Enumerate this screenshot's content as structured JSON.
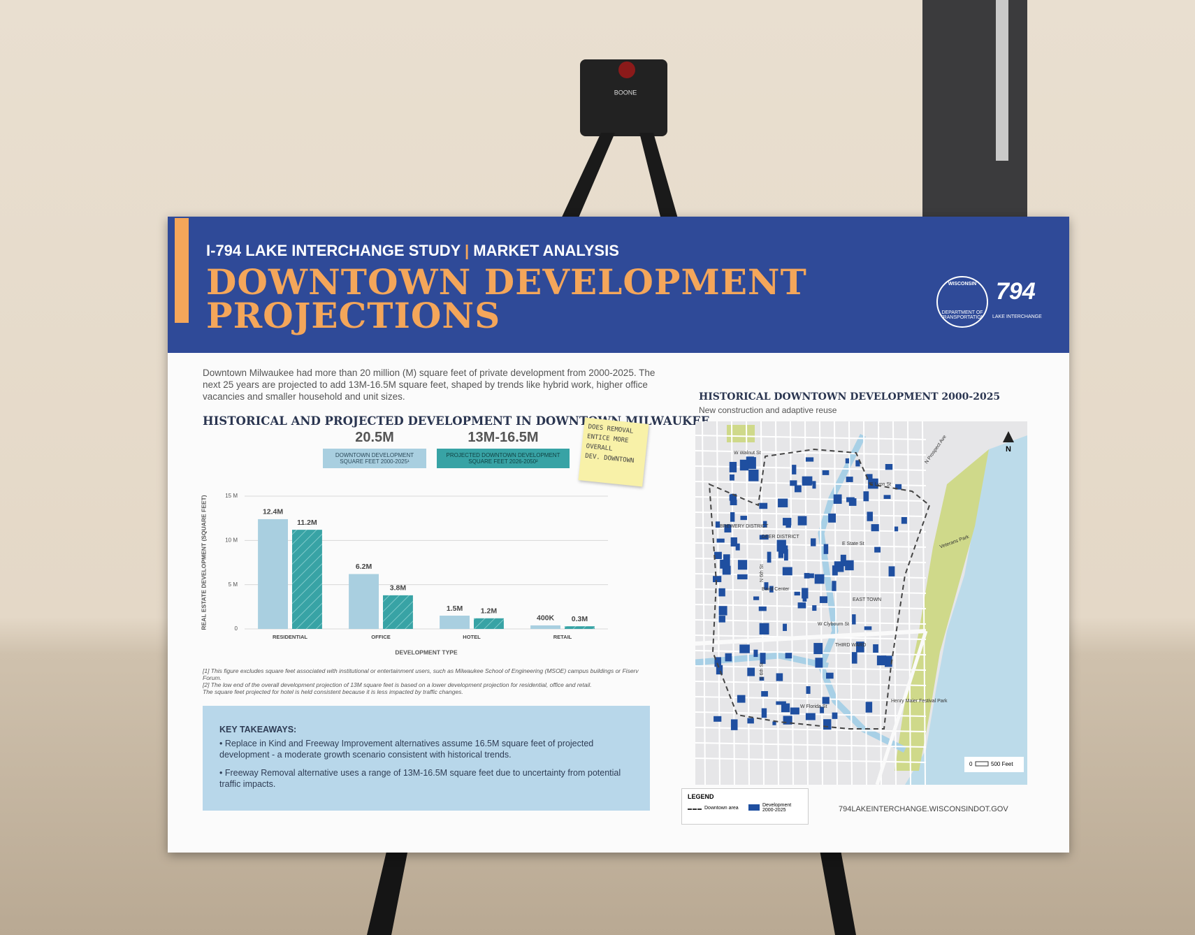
{
  "header": {
    "study": "I-794 LAKE INTERCHANGE STUDY",
    "section": "MARKET ANALYSIS",
    "title_line1": "DOWNTOWN DEVELOPMENT",
    "title_line2": "PROJECTIONS"
  },
  "logos": {
    "agency_top": "WISCONSIN",
    "agency_bottom": "DEPARTMENT OF TRANSPORTATION",
    "route": "794",
    "route_caption": "LAKE INTERCHANGE"
  },
  "intro": "Downtown Milwaukee had more than 20 million (M) square feet of private development from 2000-2025. The next 25 years are projected to add 13M-16.5M square feet, shaped by trends like hybrid work, higher office vacancies and smaller household and unit sizes.",
  "chart_data": {
    "type": "bar",
    "title": "HISTORICAL AND PROJECTED DEVELOPMENT IN DOWNTOWN MILWAUKEE",
    "xlabel": "DEVELOPMENT TYPE",
    "ylabel": "REAL ESTATE DEVELOPMENT (SQUARE FEET)",
    "categories": [
      "RESIDENTIAL",
      "OFFICE",
      "HOTEL",
      "RETAIL"
    ],
    "series": [
      {
        "name": "DOWNTOWN DEVELOPMENT SQUARE FEET 2000-2025¹",
        "summary": "20.5M",
        "color": "#a9cfe0",
        "pattern": "solid",
        "values": [
          12.4,
          6.2,
          1.5,
          0.4
        ],
        "value_labels": [
          "12.4M",
          "6.2M",
          "1.5M",
          "400K"
        ]
      },
      {
        "name": "PROJECTED DOWNTOWN DEVELOPMENT SQUARE FEET 2026-2050²",
        "summary": "13M-16.5M",
        "color": "#38a3a5",
        "pattern": "hatch",
        "values": [
          11.2,
          3.8,
          1.2,
          0.3
        ],
        "value_labels": [
          "11.2M",
          "3.8M",
          "1.2M",
          "0.3M"
        ]
      }
    ],
    "ylim": [
      0,
      15
    ],
    "yticks": [
      0,
      {
        "value": 5,
        "label": "5 M"
      },
      {
        "value": 10,
        "label": "10 M"
      },
      {
        "value": 15,
        "label": "15 M"
      }
    ],
    "grid": true
  },
  "footnotes": [
    "[1] This figure excludes square feet associated with institutional or entertainment users, such as Milwaukee School of Engineering (MSOE) campus buildings or Fiserv Forum.",
    "[2] The low end of the overall development projection of 13M square feet is based on a lower development projection for residential, office and retail. The square feet projected for hotel is held consistent because it is less impacted by traffic changes."
  ],
  "key_takeaways": {
    "heading": "KEY TAKEAWAYS:",
    "items": [
      "Replace in Kind and Freeway Improvement alternatives assume 16.5M square feet of projected development - a moderate growth scenario consistent with historical trends.",
      "Freeway Removal alternative uses a range of 13M-16.5M square feet due to uncertainty from potential traffic impacts."
    ]
  },
  "sticky_note": [
    "DOES REMOVAL",
    "ENTICE MORE",
    "OVERALL",
    "DEV. DOWNTOWN"
  ],
  "map": {
    "title": "HISTORICAL DOWNTOWN DEVELOPMENT 2000-2025",
    "subtitle": "New construction and adaptive reuse",
    "north": "N",
    "labels": [
      "W Walnut St",
      "E Lyon St",
      "N Prospect Ave",
      "BREWERY DISTRICT",
      "DEER DISTRICT",
      "E State St",
      "Veterans Park",
      "N 6th St",
      "Baird Center",
      "EAST TOWN",
      "W Clybourn St",
      "THIRD WARD",
      "S 6th St",
      "W Florida St",
      "Henry Maier Festival Park"
    ],
    "scale": {
      "zero": "0",
      "distance": "500 Feet"
    },
    "legend": {
      "title": "LEGEND",
      "items": [
        "Downtown area",
        "Development 2000-2025"
      ]
    }
  },
  "url": "794LAKEINTERCHANGE.WISCONSINDOT.GOV",
  "easel_label": "BOONE"
}
